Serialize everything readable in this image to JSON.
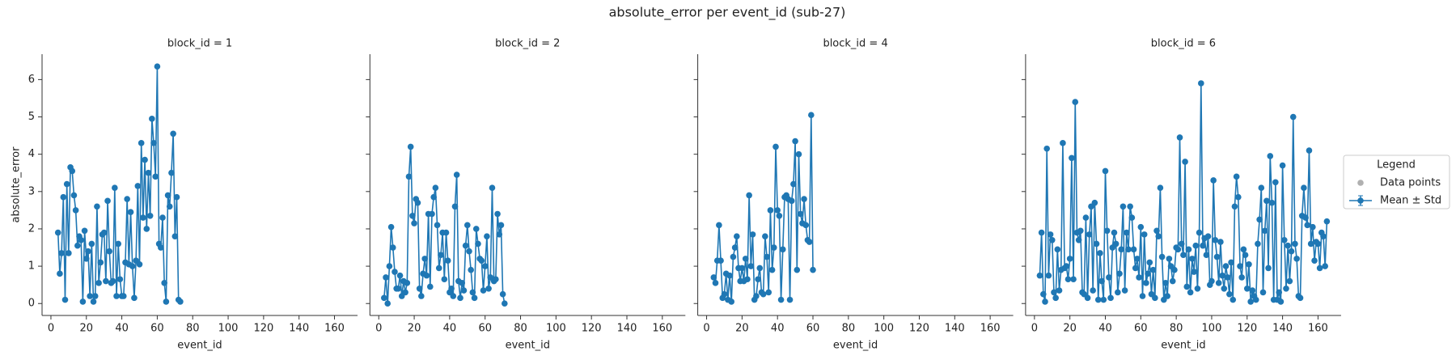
{
  "title": "absolute_error per event_id (sub-27)",
  "legend": {
    "title": "Legend",
    "extra": [
      {
        "name": "Data points",
        "color": "#b0b0b0"
      }
    ]
  },
  "chart_data": [
    {
      "type": "line",
      "title": "block_id = 1",
      "x_label": "event_id",
      "y_label": "absolute_error",
      "xlim": [
        -5,
        173
      ],
      "ylim": [
        -0.32,
        6.68
      ],
      "xticks": [
        0,
        20,
        40,
        60,
        80,
        100,
        120,
        140,
        160
      ],
      "yticks": [
        0,
        1,
        2,
        3,
        4,
        5,
        6
      ],
      "series": [
        {
          "name": "Mean ± Std",
          "color": "#1f77b4",
          "x": [
            4,
            5,
            6,
            7,
            8,
            9,
            10,
            11,
            12,
            13,
            14,
            15,
            16,
            17,
            18,
            19,
            20,
            21,
            22,
            23,
            24,
            25,
            26,
            27,
            28,
            29,
            30,
            31,
            32,
            33,
            34,
            35,
            36,
            37,
            38,
            39,
            40,
            41,
            42,
            43,
            44,
            45,
            46,
            47,
            48,
            49,
            50,
            51,
            52,
            53,
            54,
            55,
            56,
            57,
            58,
            59,
            60,
            61,
            62,
            63,
            64,
            65,
            66,
            67,
            68,
            69,
            70,
            71,
            72,
            73
          ],
          "values": [
            1.9,
            0.8,
            1.35,
            2.85,
            0.1,
            3.2,
            1.35,
            3.65,
            3.55,
            2.9,
            2.5,
            1.55,
            1.8,
            1.7,
            0.05,
            1.95,
            1.2,
            1.4,
            0.2,
            1.6,
            0.05,
            0.2,
            2.6,
            0.55,
            1.1,
            1.85,
            1.9,
            0.6,
            2.75,
            1.4,
            0.55,
            0.6,
            3.1,
            0.2,
            1.6,
            0.65,
            0.2,
            0.2,
            1.1,
            2.8,
            1.05,
            2.45,
            1.0,
            0.15,
            1.15,
            3.15,
            1.05,
            4.3,
            2.3,
            3.85,
            2.0,
            3.5,
            2.35,
            4.95,
            4.3,
            3.4,
            6.35,
            1.6,
            1.5,
            2.3,
            0.55,
            0.05,
            2.9,
            2.6,
            3.5,
            4.55,
            1.8,
            2.85,
            0.1,
            0.05
          ]
        }
      ]
    },
    {
      "type": "line",
      "title": "block_id = 2",
      "x_label": "event_id",
      "xlim": [
        -5,
        173
      ],
      "ylim": [
        -0.32,
        6.68
      ],
      "xticks": [
        0,
        20,
        40,
        60,
        80,
        100,
        120,
        140,
        160
      ],
      "yticks": [
        0,
        1,
        2,
        3,
        4,
        5,
        6
      ],
      "series": [
        {
          "name": "Mean ± Std",
          "color": "#1f77b4",
          "x": [
            3,
            4,
            5,
            6,
            7,
            8,
            9,
            10,
            11,
            12,
            13,
            14,
            15,
            16,
            17,
            18,
            19,
            20,
            21,
            22,
            23,
            24,
            25,
            26,
            27,
            28,
            29,
            30,
            31,
            32,
            33,
            34,
            35,
            36,
            37,
            38,
            39,
            40,
            41,
            42,
            43,
            44,
            45,
            46,
            47,
            48,
            49,
            50,
            51,
            52,
            53,
            54,
            55,
            56,
            57,
            58,
            59,
            60,
            61,
            62,
            63,
            64,
            65,
            66,
            67,
            68,
            69,
            70,
            71
          ],
          "values": [
            0.15,
            0.7,
            0.0,
            1.0,
            2.05,
            1.5,
            0.85,
            0.4,
            0.4,
            0.75,
            0.2,
            0.6,
            0.3,
            0.55,
            3.4,
            4.2,
            2.35,
            2.15,
            2.8,
            2.7,
            0.4,
            0.2,
            0.8,
            1.2,
            0.75,
            2.4,
            0.45,
            2.4,
            2.85,
            3.1,
            2.1,
            0.95,
            1.3,
            1.9,
            0.65,
            1.9,
            1.15,
            0.3,
            0.4,
            0.2,
            2.6,
            3.45,
            0.6,
            0.15,
            0.55,
            0.35,
            1.55,
            2.1,
            1.4,
            0.9,
            0.3,
            0.15,
            2.0,
            1.6,
            1.2,
            1.15,
            0.35,
            1.0,
            1.8,
            0.4,
            0.7,
            3.1,
            0.6,
            0.65,
            2.4,
            1.85,
            2.1,
            0.25,
            0.0
          ]
        }
      ]
    },
    {
      "type": "line",
      "title": "block_id = 4",
      "x_label": "event_id",
      "xlim": [
        -5,
        173
      ],
      "ylim": [
        -0.32,
        6.68
      ],
      "xticks": [
        0,
        20,
        40,
        60,
        80,
        100,
        120,
        140,
        160
      ],
      "yticks": [
        0,
        1,
        2,
        3,
        4,
        5,
        6
      ],
      "series": [
        {
          "name": "Mean ± Std",
          "color": "#1f77b4",
          "x": [
            4,
            5,
            6,
            7,
            8,
            9,
            10,
            11,
            12,
            13,
            14,
            15,
            16,
            17,
            18,
            19,
            20,
            21,
            22,
            23,
            24,
            25,
            26,
            27,
            28,
            29,
            30,
            31,
            32,
            33,
            34,
            35,
            36,
            37,
            38,
            39,
            40,
            41,
            42,
            43,
            44,
            45,
            46,
            47,
            48,
            49,
            50,
            51,
            52,
            53,
            54,
            55,
            56,
            57,
            58,
            59,
            60
          ],
          "values": [
            0.7,
            0.55,
            1.15,
            2.1,
            1.15,
            0.15,
            0.25,
            0.8,
            0.1,
            0.75,
            0.05,
            1.25,
            1.5,
            1.8,
            0.95,
            0.6,
            0.95,
            0.6,
            1.2,
            0.65,
            2.9,
            1.0,
            1.85,
            0.1,
            0.2,
            0.65,
            0.95,
            0.3,
            0.25,
            1.8,
            1.25,
            0.3,
            2.5,
            0.9,
            1.5,
            4.2,
            2.5,
            2.35,
            0.1,
            1.45,
            2.85,
            2.9,
            2.8,
            0.1,
            2.75,
            3.2,
            4.35,
            0.9,
            4.0,
            2.4,
            2.15,
            2.8,
            2.1,
            1.7,
            1.65,
            5.05,
            0.9
          ]
        }
      ]
    },
    {
      "type": "line",
      "title": "block_id = 6",
      "x_label": "event_id",
      "xlim": [
        -5,
        173
      ],
      "ylim": [
        -0.32,
        6.68
      ],
      "xticks": [
        0,
        20,
        40,
        60,
        80,
        100,
        120,
        140,
        160
      ],
      "yticks": [
        0,
        1,
        2,
        3,
        4,
        5,
        6
      ],
      "series": [
        {
          "name": "Mean ± Std",
          "color": "#1f77b4",
          "x": [
            3,
            4,
            5,
            6,
            7,
            8,
            9,
            10,
            11,
            12,
            13,
            14,
            15,
            16,
            17,
            18,
            19,
            20,
            21,
            22,
            23,
            24,
            25,
            26,
            27,
            28,
            29,
            30,
            31,
            32,
            33,
            34,
            35,
            36,
            37,
            38,
            39,
            40,
            41,
            42,
            43,
            44,
            45,
            46,
            47,
            48,
            49,
            50,
            51,
            52,
            53,
            54,
            55,
            56,
            57,
            58,
            59,
            60,
            61,
            62,
            63,
            64,
            65,
            66,
            67,
            68,
            69,
            70,
            71,
            72,
            73,
            74,
            75,
            76,
            77,
            78,
            79,
            80,
            81,
            82,
            83,
            84,
            85,
            86,
            87,
            88,
            89,
            90,
            91,
            92,
            93,
            94,
            95,
            96,
            97,
            98,
            99,
            100,
            101,
            102,
            103,
            104,
            105,
            106,
            107,
            108,
            109,
            110,
            111,
            112,
            113,
            114,
            115,
            116,
            117,
            118,
            119,
            120,
            121,
            122,
            123,
            124,
            125,
            126,
            127,
            128,
            129,
            130,
            131,
            132,
            133,
            134,
            135,
            136,
            137,
            138,
            139,
            140,
            141,
            142,
            143,
            144,
            145,
            146,
            147,
            148,
            149,
            150,
            151,
            152,
            153,
            154,
            155,
            156,
            157,
            158,
            159,
            160,
            161,
            162,
            163,
            164,
            165
          ],
          "values": [
            0.75,
            1.9,
            0.25,
            0.05,
            4.15,
            0.75,
            1.85,
            1.7,
            0.3,
            0.15,
            1.45,
            0.35,
            0.9,
            4.3,
            0.95,
            1.0,
            0.65,
            1.2,
            3.9,
            0.65,
            5.4,
            1.9,
            1.7,
            1.95,
            0.3,
            0.25,
            2.3,
            0.15,
            1.85,
            2.6,
            0.35,
            2.7,
            1.6,
            0.1,
            1.35,
            0.6,
            0.1,
            3.55,
            1.95,
            0.7,
            0.15,
            1.5,
            1.9,
            1.6,
            0.3,
            0.8,
            1.45,
            2.6,
            0.35,
            1.9,
            1.45,
            2.6,
            2.3,
            1.45,
            0.95,
            1.2,
            0.7,
            2.05,
            0.2,
            1.85,
            0.55,
            0.8,
            1.1,
            0.25,
            0.9,
            0.15,
            1.95,
            1.8,
            3.1,
            1.25,
            0.1,
            0.55,
            0.2,
            1.2,
            1.0,
            0.6,
            0.9,
            1.5,
            1.45,
            4.45,
            1.6,
            1.3,
            3.8,
            0.45,
            1.45,
            0.3,
            1.2,
            0.85,
            1.55,
            0.4,
            1.9,
            5.9,
            1.55,
            1.75,
            1.3,
            1.8,
            0.5,
            0.6,
            3.3,
            1.7,
            1.25,
            0.55,
            1.65,
            0.75,
            0.4,
            1.0,
            0.7,
            0.25,
            1.1,
            0.1,
            2.6,
            3.4,
            2.85,
            1.0,
            0.7,
            1.45,
            1.3,
            0.4,
            1.05,
            0.05,
            0.35,
            0.2,
            0.1,
            1.6,
            2.25,
            3.1,
            0.3,
            1.95,
            2.75,
            0.95,
            3.95,
            2.7,
            0.1,
            3.25,
            0.1,
            0.3,
            0.05,
            3.7,
            1.7,
            0.4,
            1.55,
            0.6,
            1.4,
            5.0,
            1.6,
            1.2,
            0.2,
            0.15,
            2.35,
            3.1,
            2.3,
            2.1,
            4.1,
            1.6,
            2.05,
            1.15,
            1.65,
            1.6,
            0.95,
            1.9,
            1.8,
            1.0,
            2.2
          ]
        }
      ]
    }
  ]
}
